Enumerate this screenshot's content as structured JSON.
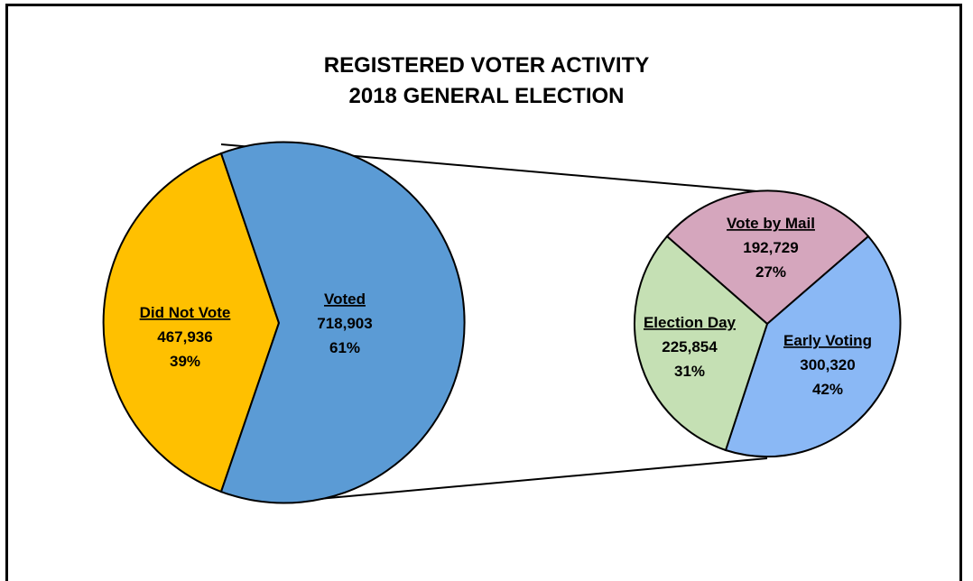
{
  "chart_data": [
    {
      "type": "pie",
      "title": "REGISTERED VOTER ACTIVITY",
      "subtitle": "2018 GENERAL ELECTION",
      "slices": [
        {
          "label": "Did Not Vote",
          "value": 467936,
          "value_text": "467,936",
          "percent_text": "39%",
          "color": "#FFC000"
        },
        {
          "label": "Voted",
          "value": 718903,
          "value_text": "718,903",
          "percent_text": "61%",
          "color": "#5B9BD5"
        }
      ]
    },
    {
      "type": "pie",
      "slices": [
        {
          "label": "Vote by Mail",
          "value": 192729,
          "value_text": "192,729",
          "percent_text": "27%",
          "color": "#D5A6BD"
        },
        {
          "label": "Early Voting",
          "value": 300320,
          "value_text": "300,320",
          "percent_text": "42%",
          "color": "#8AB8F5"
        },
        {
          "label": "Election Day",
          "value": 225854,
          "value_text": "225,854",
          "percent_text": "31%",
          "color": "#C5E0B4"
        }
      ]
    }
  ]
}
